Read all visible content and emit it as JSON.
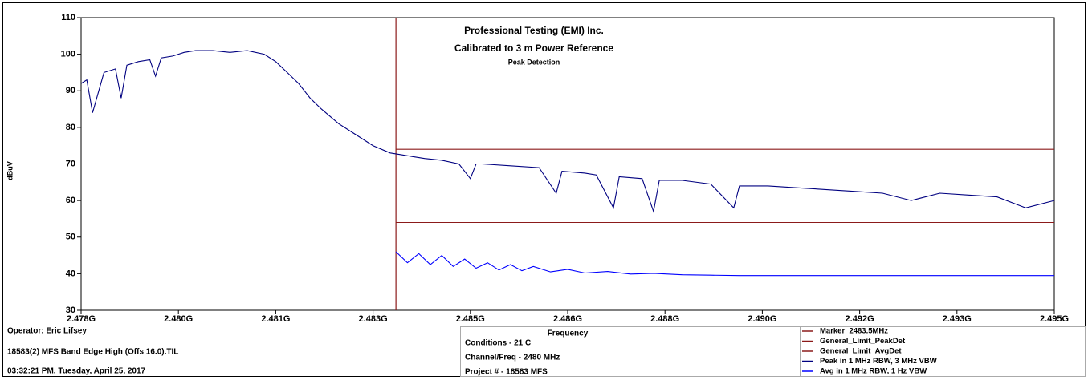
{
  "chart_data": {
    "type": "line",
    "title": "Professional Testing (EMI) Inc.",
    "subtitle": "Calibrated to 3 m Power Reference",
    "detector": "Peak Detection",
    "x_label": "Frequency",
    "y_label": "dBuV",
    "xlim": [
      2.478,
      2.495
    ],
    "xticks": [
      {
        "value": 2.478,
        "label": "2.478G"
      },
      {
        "value": 2.4797,
        "label": "2.480G"
      },
      {
        "value": 2.4814,
        "label": "2.481G"
      },
      {
        "value": 2.4831,
        "label": "2.483G"
      },
      {
        "value": 2.4848,
        "label": "2.485G"
      },
      {
        "value": 2.4865,
        "label": "2.486G"
      },
      {
        "value": 2.4882,
        "label": "2.488G"
      },
      {
        "value": 2.4899,
        "label": "2.490G"
      },
      {
        "value": 2.4916,
        "label": "2.492G"
      },
      {
        "value": 2.4933,
        "label": "2.493G"
      },
      {
        "value": 2.495,
        "label": "2.495G"
      }
    ],
    "ylim": [
      30,
      110
    ],
    "yticks": [
      30,
      40,
      50,
      60,
      70,
      80,
      90,
      100,
      110
    ],
    "markers": [
      {
        "name": "Marker_2483.5MHz",
        "color": "#8b1a1a",
        "x": 2.4835
      }
    ],
    "series": [
      {
        "name": "General_Limit_PeakDet",
        "color": "#8b1a1a",
        "x": [
          2.4835,
          2.495
        ],
        "values": [
          74,
          74
        ]
      },
      {
        "name": "General_Limit_AvgDet",
        "color": "#8b1a1a",
        "x": [
          2.4835,
          2.495
        ],
        "values": [
          54,
          54
        ]
      },
      {
        "name": "Peak in 1 MHz RBW, 3 MHz VBW",
        "color": "#000080",
        "x": [
          2.478,
          2.4781,
          2.4782,
          2.4784,
          2.4786,
          2.4787,
          2.4788,
          2.479,
          2.4792,
          2.4793,
          2.4794,
          2.4796,
          2.4798,
          2.48,
          2.4803,
          2.4806,
          2.4809,
          2.4812,
          2.4814,
          2.4816,
          2.4818,
          2.482,
          2.4822,
          2.4825,
          2.4828,
          2.4831,
          2.4834,
          2.4836,
          2.4838,
          2.484,
          2.4843,
          2.4846,
          2.4848,
          2.4849,
          2.485,
          2.4855,
          2.486,
          2.4863,
          2.4864,
          2.4868,
          2.487,
          2.4873,
          2.4874,
          2.4878,
          2.488,
          2.4881,
          2.4885,
          2.489,
          2.4894,
          2.4895,
          2.49,
          2.4905,
          2.491,
          2.4915,
          2.492,
          2.4925,
          2.493,
          2.4935,
          2.494,
          2.4945,
          2.495
        ],
        "values": [
          92,
          93,
          84,
          95,
          96,
          88,
          97,
          98,
          98.5,
          94,
          99,
          99.5,
          100.5,
          101,
          101,
          100.5,
          101,
          100,
          98,
          95,
          92,
          88,
          85,
          81,
          78,
          75,
          73,
          72.5,
          72,
          71.5,
          71,
          70,
          66,
          70,
          70,
          69.5,
          69,
          62,
          68,
          67.5,
          67,
          58,
          66.5,
          66,
          57,
          65.5,
          65.5,
          64.5,
          58,
          64,
          64,
          63.5,
          63,
          62.5,
          62,
          60,
          62,
          61.5,
          61,
          58,
          60
        ]
      },
      {
        "name": "Avg in 1 MHz RBW, 1 Hz VBW",
        "color": "#0000ff",
        "x": [
          2.4835,
          2.4837,
          2.4839,
          2.4841,
          2.4843,
          2.4845,
          2.4847,
          2.4849,
          2.4851,
          2.4853,
          2.4855,
          2.4857,
          2.4859,
          2.4862,
          2.4865,
          2.4868,
          2.4872,
          2.4876,
          2.488,
          2.4885,
          2.489,
          2.4895,
          2.495
        ],
        "values": [
          46,
          43,
          45.5,
          42.5,
          45,
          42,
          44,
          41.5,
          43,
          41,
          42.5,
          40.8,
          42,
          40.5,
          41.2,
          40.2,
          40.6,
          39.9,
          40.1,
          39.7,
          39.6,
          39.5,
          39.5
        ]
      }
    ],
    "info": {
      "operator": "Operator: Eric Lifsey",
      "file": "18583(2) MFS Band Edge High (Offs 16.0).TIL",
      "timestamp": "03:32:21 PM, Tuesday, April 25, 2017",
      "conditions": "Conditions - 21 C",
      "channel": "Channel/Freq - 2480 MHz",
      "project": "Project # - 18583 MFS"
    }
  }
}
